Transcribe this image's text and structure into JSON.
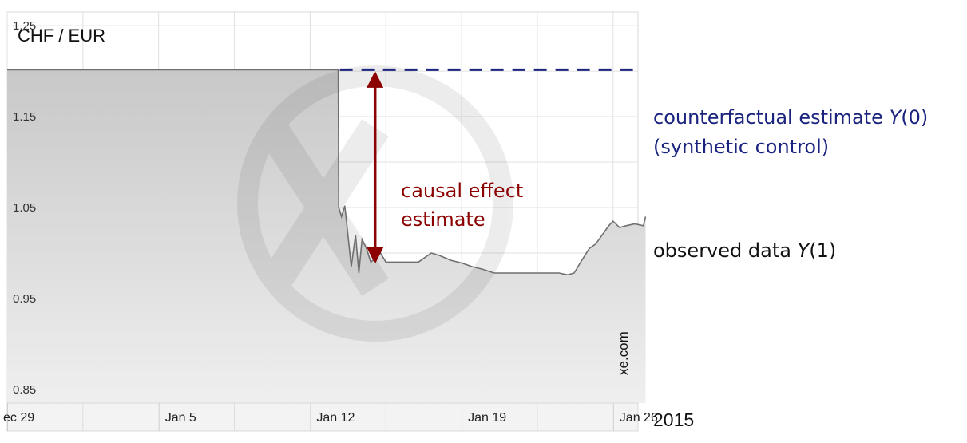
{
  "chart_data": {
    "type": "area",
    "title": "CHF / EUR",
    "watermark": "xe.com",
    "year_label": "2015",
    "x_tick_labels": [
      "ec 29",
      "Jan 5",
      "Jan 12",
      "Jan 19",
      "Jan 26"
    ],
    "x_tick_days": [
      0,
      7,
      14,
      21,
      28
    ],
    "y_tick_labels": [
      "1.25",
      "1.15",
      "1.05",
      "0.95",
      "0.85"
    ],
    "y_ticks": [
      1.25,
      1.15,
      1.05,
      0.95,
      0.85
    ],
    "ylim": [
      0.835,
      1.265
    ],
    "xlim_days": [
      0,
      29.5
    ],
    "grid": true,
    "series": [
      {
        "name": "observed data",
        "x_days": [
          0,
          15.3,
          15.32,
          15.45,
          15.6,
          15.7,
          15.9,
          16.1,
          16.25,
          16.4,
          16.6,
          16.8,
          17.0,
          17.2,
          17.5,
          18.0,
          18.5,
          19.0,
          19.3,
          19.6,
          20.0,
          20.5,
          21.0,
          21.5,
          22.0,
          22.5,
          23.0,
          23.5,
          24.0,
          24.5,
          25.0,
          25.5,
          25.9,
          26.2,
          26.5,
          26.9,
          27.2,
          27.5,
          27.8,
          28.0,
          28.3,
          28.6,
          29.0,
          29.4,
          29.5
        ],
        "values": [
          1.2015,
          1.2015,
          1.05,
          1.04,
          1.052,
          1.03,
          0.985,
          1.02,
          0.978,
          1.015,
          1.005,
          0.99,
          0.994,
          1.002,
          0.99,
          0.99,
          0.99,
          0.99,
          0.995,
          1.0,
          0.997,
          0.992,
          0.989,
          0.985,
          0.982,
          0.978,
          0.978,
          0.978,
          0.978,
          0.978,
          0.978,
          0.978,
          0.976,
          0.978,
          0.99,
          1.005,
          1.01,
          1.02,
          1.03,
          1.035,
          1.028,
          1.03,
          1.032,
          1.03,
          1.04
        ]
      },
      {
        "name": "counterfactual estimate",
        "style": "dashed",
        "x_days": [
          15.3,
          29.5
        ],
        "values": [
          1.2015,
          1.2015
        ]
      }
    ],
    "annotations": {
      "counterfactual_line1_text": "counterfactual estimate ",
      "counterfactual_line1_var": "Y",
      "counterfactual_line1_arg": "(0)",
      "counterfactual_line2": "(synthetic control)",
      "observed_text": "observed data ",
      "observed_var": "Y",
      "observed_arg": "(1)",
      "effect_line1": "causal effect",
      "effect_line2": "estimate",
      "effect_arrow": {
        "x_day": 17.0,
        "top": 1.2015,
        "bottom": 0.99
      }
    },
    "colors": {
      "area_fill": "#cfcfcf",
      "line": "#6f6f6f",
      "counterfactual": "#1a237e",
      "effect": "#8b0000",
      "grid": "#e0e0e0"
    }
  }
}
